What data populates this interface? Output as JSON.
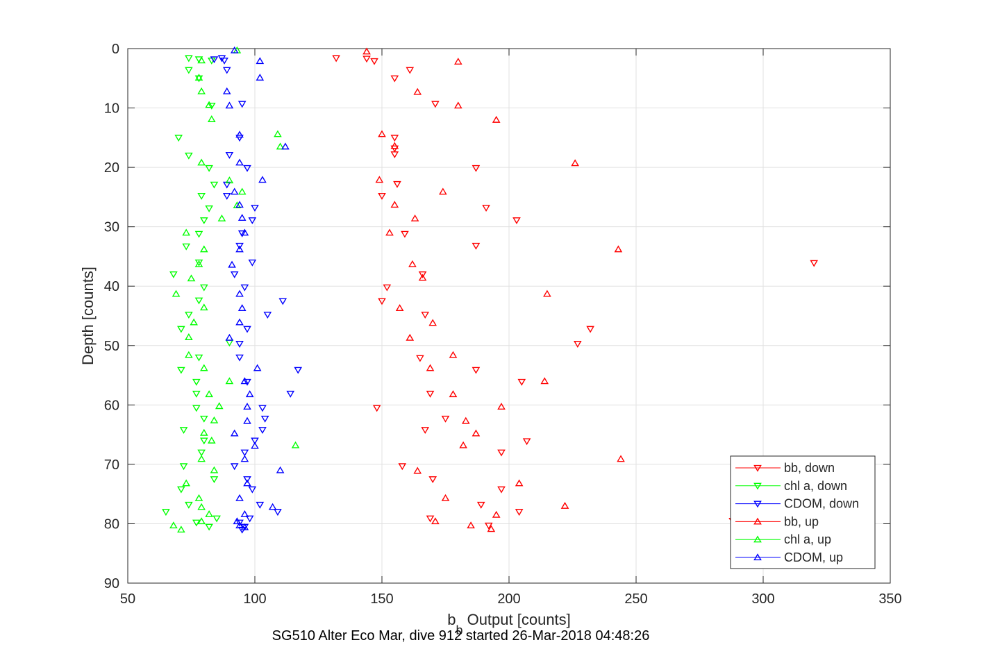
{
  "chart_data": {
    "type": "scatter",
    "title": "",
    "xlabel_main": "b",
    "xlabel_sub": "b",
    "xlabel_rest": " Output [counts]",
    "ylabel": "Depth [counts]",
    "caption": "SG510 Alter Eco Mar, dive 912 started 26-Mar-2018 04:48:26",
    "xlim": [
      50,
      350
    ],
    "ylim": [
      0,
      90
    ],
    "y_reversed": true,
    "grid": true,
    "x_ticks": [
      "50",
      "100",
      "150",
      "200",
      "250",
      "300",
      "350"
    ],
    "y_ticks": [
      "0",
      "10",
      "20",
      "30",
      "40",
      "50",
      "60",
      "70",
      "80",
      "90"
    ],
    "legend_location": "bottom-right",
    "colors": {
      "red": "#ff0000",
      "green": "#00ff00",
      "blue": "#0000ff",
      "grid": "#e0e0e0",
      "axis": "#262626"
    },
    "series": [
      {
        "name": "bb, down",
        "color": "#ff0000",
        "marker": "triangle-down",
        "points": [
          [
            132,
            1.6
          ],
          [
            144,
            1.7
          ],
          [
            147,
            2.1
          ],
          [
            161,
            3.6
          ],
          [
            155,
            5.0
          ],
          [
            171,
            9.3
          ],
          [
            155,
            15.0
          ],
          [
            155,
            16.8
          ],
          [
            155,
            17.8
          ],
          [
            187,
            20.1
          ],
          [
            156,
            22.8
          ],
          [
            150,
            24.8
          ],
          [
            191,
            26.8
          ],
          [
            203,
            28.9
          ],
          [
            159,
            31.2
          ],
          [
            187,
            33.2
          ],
          [
            320,
            36.1
          ],
          [
            166,
            38.0
          ],
          [
            152,
            40.2
          ],
          [
            150,
            42.5
          ],
          [
            167,
            44.8
          ],
          [
            232,
            47.2
          ],
          [
            227,
            49.7
          ],
          [
            165,
            52.1
          ],
          [
            187,
            54.1
          ],
          [
            205,
            56.1
          ],
          [
            169,
            58.1
          ],
          [
            148,
            60.5
          ],
          [
            175,
            62.3
          ],
          [
            167,
            64.2
          ],
          [
            207,
            66.1
          ],
          [
            197,
            68.0
          ],
          [
            158,
            70.3
          ],
          [
            170,
            72.5
          ],
          [
            197,
            74.2
          ],
          [
            189,
            76.8
          ],
          [
            204,
            78.0
          ],
          [
            169,
            79.1
          ],
          [
            192,
            80.3
          ],
          [
            288,
            79.5
          ]
        ]
      },
      {
        "name": "chl a, down",
        "color": "#00ff00",
        "marker": "triangle-down",
        "points": [
          [
            74,
            1.6
          ],
          [
            78,
            1.8
          ],
          [
            83,
            2.0
          ],
          [
            74,
            3.6
          ],
          [
            78,
            5.0
          ],
          [
            83,
            9.6
          ],
          [
            70,
            15.0
          ],
          [
            74,
            18.0
          ],
          [
            82,
            20.1
          ],
          [
            84,
            22.9
          ],
          [
            79,
            24.8
          ],
          [
            82,
            26.9
          ],
          [
            80,
            28.9
          ],
          [
            78,
            31.2
          ],
          [
            73,
            33.3
          ],
          [
            78,
            36.0
          ],
          [
            68,
            38.0
          ],
          [
            80,
            40.2
          ],
          [
            78,
            42.4
          ],
          [
            74,
            44.8
          ],
          [
            71,
            47.2
          ],
          [
            90,
            49.5
          ],
          [
            78,
            52.0
          ],
          [
            71,
            54.1
          ],
          [
            77,
            56.1
          ],
          [
            77,
            58.1
          ],
          [
            77,
            60.5
          ],
          [
            80,
            62.3
          ],
          [
            72,
            64.2
          ],
          [
            80,
            66.0
          ],
          [
            79,
            68.0
          ],
          [
            72,
            70.3
          ],
          [
            84,
            72.5
          ],
          [
            71,
            74.2
          ],
          [
            74,
            76.8
          ],
          [
            65,
            78.0
          ],
          [
            77,
            79.8
          ],
          [
            82,
            80.5
          ],
          [
            85,
            79.1
          ]
        ]
      },
      {
        "name": "CDOM, down",
        "color": "#0000ff",
        "marker": "triangle-down",
        "points": [
          [
            84,
            1.8
          ],
          [
            87,
            1.6
          ],
          [
            88,
            2.0
          ],
          [
            89,
            3.6
          ],
          [
            95,
            9.3
          ],
          [
            94,
            15.0
          ],
          [
            90,
            17.9
          ],
          [
            97,
            20.1
          ],
          [
            89,
            22.9
          ],
          [
            89,
            24.8
          ],
          [
            100,
            26.8
          ],
          [
            99,
            28.9
          ],
          [
            95,
            31.1
          ],
          [
            94,
            33.2
          ],
          [
            99,
            36.0
          ],
          [
            92,
            38.0
          ],
          [
            96,
            40.2
          ],
          [
            111,
            42.5
          ],
          [
            105,
            44.8
          ],
          [
            97,
            47.2
          ],
          [
            94,
            49.7
          ],
          [
            94,
            52.0
          ],
          [
            117,
            54.1
          ],
          [
            97,
            56.1
          ],
          [
            114,
            58.1
          ],
          [
            103,
            60.5
          ],
          [
            104,
            62.3
          ],
          [
            103,
            64.2
          ],
          [
            100,
            66.0
          ],
          [
            96,
            68.0
          ],
          [
            92,
            70.3
          ],
          [
            97,
            72.5
          ],
          [
            99,
            74.2
          ],
          [
            102,
            76.8
          ],
          [
            109,
            78.0
          ],
          [
            98,
            79.1
          ],
          [
            94,
            79.8
          ],
          [
            96,
            80.5
          ],
          [
            95,
            81.0
          ]
        ]
      },
      {
        "name": "bb, up",
        "color": "#ff0000",
        "marker": "triangle-up",
        "points": [
          [
            144,
            0.5
          ],
          [
            180,
            2.2
          ],
          [
            164,
            7.3
          ],
          [
            180,
            9.6
          ],
          [
            195,
            12.0
          ],
          [
            150,
            14.4
          ],
          [
            155,
            16.4
          ],
          [
            226,
            19.3
          ],
          [
            149,
            22.1
          ],
          [
            174,
            24.1
          ],
          [
            155,
            26.3
          ],
          [
            163,
            28.6
          ],
          [
            153,
            31.0
          ],
          [
            243,
            33.8
          ],
          [
            162,
            36.3
          ],
          [
            166,
            38.6
          ],
          [
            215,
            41.3
          ],
          [
            157,
            43.7
          ],
          [
            170,
            46.2
          ],
          [
            161,
            48.7
          ],
          [
            178,
            51.6
          ],
          [
            169,
            53.8
          ],
          [
            214,
            56.0
          ],
          [
            178,
            58.2
          ],
          [
            197,
            60.3
          ],
          [
            183,
            62.7
          ],
          [
            187,
            64.8
          ],
          [
            182,
            66.8
          ],
          [
            244,
            69.1
          ],
          [
            164,
            71.1
          ],
          [
            204,
            73.2
          ],
          [
            175,
            75.7
          ],
          [
            222,
            77.0
          ],
          [
            195,
            78.5
          ],
          [
            171,
            79.6
          ],
          [
            185,
            80.3
          ],
          [
            193,
            80.9
          ]
        ]
      },
      {
        "name": "chl a, up",
        "color": "#00ff00",
        "marker": "triangle-up",
        "points": [
          [
            93,
            0.3
          ],
          [
            79,
            2.0
          ],
          [
            78,
            4.9
          ],
          [
            79,
            7.2
          ],
          [
            82,
            9.5
          ],
          [
            83,
            11.9
          ],
          [
            109,
            14.4
          ],
          [
            110,
            16.5
          ],
          [
            79,
            19.2
          ],
          [
            90,
            22.2
          ],
          [
            95,
            24.1
          ],
          [
            93,
            26.4
          ],
          [
            87,
            28.6
          ],
          [
            73,
            31.0
          ],
          [
            80,
            33.8
          ],
          [
            78,
            36.3
          ],
          [
            75,
            38.7
          ],
          [
            69,
            41.3
          ],
          [
            80,
            43.6
          ],
          [
            76,
            46.1
          ],
          [
            74,
            48.6
          ],
          [
            74,
            51.6
          ],
          [
            80,
            53.8
          ],
          [
            90,
            56.0
          ],
          [
            82,
            58.2
          ],
          [
            86,
            60.2
          ],
          [
            84,
            62.6
          ],
          [
            80,
            64.7
          ],
          [
            83,
            66.0
          ],
          [
            79,
            69.1
          ],
          [
            84,
            71.0
          ],
          [
            73,
            73.2
          ],
          [
            78,
            75.7
          ],
          [
            79,
            77.2
          ],
          [
            82,
            78.4
          ],
          [
            79,
            79.6
          ],
          [
            68,
            80.3
          ],
          [
            71,
            81.0
          ],
          [
            116,
            66.8
          ]
        ]
      },
      {
        "name": "CDOM, up",
        "color": "#0000ff",
        "marker": "triangle-up",
        "points": [
          [
            92,
            0.3
          ],
          [
            102,
            2.1
          ],
          [
            102,
            4.9
          ],
          [
            89,
            7.2
          ],
          [
            90,
            9.6
          ],
          [
            94,
            14.5
          ],
          [
            112,
            16.5
          ],
          [
            94,
            19.2
          ],
          [
            103,
            22.1
          ],
          [
            92,
            24.1
          ],
          [
            94,
            26.3
          ],
          [
            95,
            28.5
          ],
          [
            96,
            31.0
          ],
          [
            94,
            33.8
          ],
          [
            91,
            36.4
          ],
          [
            94,
            41.3
          ],
          [
            95,
            43.7
          ],
          [
            94,
            46.1
          ],
          [
            90,
            48.7
          ],
          [
            101,
            53.8
          ],
          [
            96,
            56.0
          ],
          [
            98,
            58.2
          ],
          [
            97,
            60.3
          ],
          [
            97,
            62.7
          ],
          [
            92,
            64.8
          ],
          [
            100,
            66.9
          ],
          [
            96,
            69.1
          ],
          [
            110,
            71.0
          ],
          [
            97,
            73.2
          ],
          [
            94,
            75.7
          ],
          [
            107,
            77.2
          ],
          [
            96,
            78.4
          ],
          [
            93,
            79.6
          ],
          [
            94,
            80.3
          ],
          [
            96,
            80.6
          ]
        ]
      }
    ]
  }
}
